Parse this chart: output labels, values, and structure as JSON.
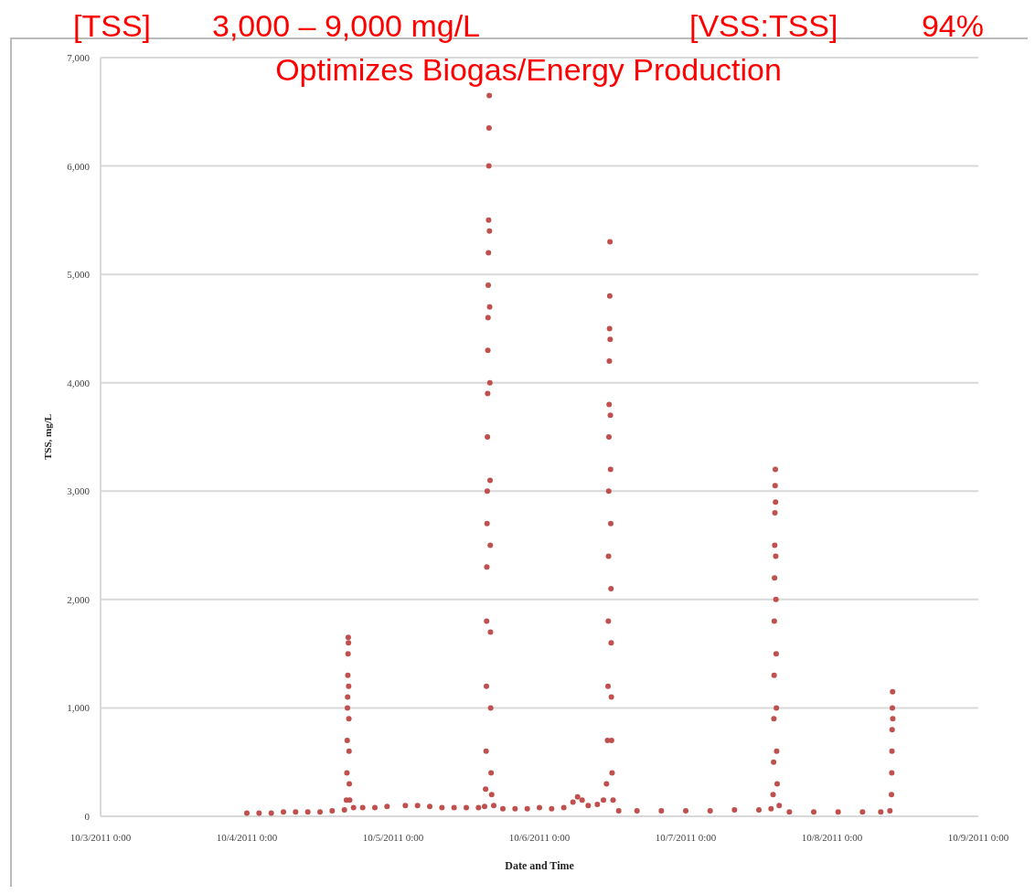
{
  "chart_data": {
    "type": "scatter",
    "xlabel": "Date and Time",
    "ylabel": "TSS, mg/L",
    "annotations": [
      "[TSS]",
      "3,000 – 9,000 mg/L",
      "[VSS:TSS]",
      "94%",
      "Optimizes Biogas/Energy Production"
    ],
    "xlim": [
      "2011-10-03T00:00",
      "2011-10-09T00:00"
    ],
    "xticks": [
      {
        "value": "2011-10-03T00:00",
        "label": "10/3/2011 0:00"
      },
      {
        "value": "2011-10-04T00:00",
        "label": "10/4/2011 0:00"
      },
      {
        "value": "2011-10-05T00:00",
        "label": "10/5/2011 0:00"
      },
      {
        "value": "2011-10-06T00:00",
        "label": "10/6/2011 0:00"
      },
      {
        "value": "2011-10-07T00:00",
        "label": "10/7/2011 0:00"
      },
      {
        "value": "2011-10-08T00:00",
        "label": "10/8/2011 0:00"
      },
      {
        "value": "2011-10-09T00:00",
        "label": "10/9/2011 0:00"
      }
    ],
    "ylim": [
      0,
      7000
    ],
    "yticks": [
      0,
      {
        "value": 1000,
        "label": "1,000"
      },
      {
        "value": 2000,
        "label": "2,000"
      },
      {
        "value": 3000,
        "label": "3,000"
      },
      {
        "value": 4000,
        "label": "4,000"
      },
      {
        "value": 5000,
        "label": "5,000"
      },
      {
        "value": 6000,
        "label": "6,000"
      },
      {
        "value": 7000,
        "label": "7,000"
      }
    ],
    "grid": "y",
    "marker": "circle",
    "series": [
      {
        "color": "#c0504d",
        "x": [
          "2011-10-04T00:00",
          "2011-10-04T02:00",
          "2011-10-04T04:00",
          "2011-10-04T06:00",
          "2011-10-04T08:00",
          "2011-10-04T10:00",
          "2011-10-04T12:00",
          "2011-10-04T14:00",
          "2011-10-04T16:00",
          "2011-10-04T16:20",
          "2011-10-04T16:25",
          "2011-10-04T16:28",
          "2011-10-04T16:30",
          "2011-10-04T16:32",
          "2011-10-04T16:34",
          "2011-10-04T16:36",
          "2011-10-04T16:38",
          "2011-10-04T16:40",
          "2011-10-04T16:42",
          "2011-10-04T16:44",
          "2011-10-04T16:46",
          "2011-10-04T16:48",
          "2011-10-04T16:52",
          "2011-10-04T17:30",
          "2011-10-04T19:00",
          "2011-10-04T21:00",
          "2011-10-04T23:00",
          "2011-10-05T02:00",
          "2011-10-05T04:00",
          "2011-10-05T06:00",
          "2011-10-05T08:00",
          "2011-10-05T10:00",
          "2011-10-05T12:00",
          "2011-10-05T14:00",
          "2011-10-05T15:00",
          "2011-10-05T15:10",
          "2011-10-05T15:15",
          "2011-10-05T15:18",
          "2011-10-05T15:20",
          "2011-10-05T15:22",
          "2011-10-05T15:24",
          "2011-10-05T15:26",
          "2011-10-05T15:28",
          "2011-10-05T15:30",
          "2011-10-05T15:32",
          "2011-10-05T15:34",
          "2011-10-05T15:36",
          "2011-10-05T15:38",
          "2011-10-05T15:40",
          "2011-10-05T15:42",
          "2011-10-05T15:44",
          "2011-10-05T15:46",
          "2011-10-05T15:48",
          "2011-10-05T15:50",
          "2011-10-05T15:52",
          "2011-10-05T15:54",
          "2011-10-05T15:56",
          "2011-10-05T15:58",
          "2011-10-05T16:00",
          "2011-10-05T16:04",
          "2011-10-05T16:10",
          "2011-10-05T16:30",
          "2011-10-05T18:00",
          "2011-10-05T20:00",
          "2011-10-05T22:00",
          "2011-10-06T00:00",
          "2011-10-06T02:00",
          "2011-10-06T04:00",
          "2011-10-06T05:30",
          "2011-10-06T06:15",
          "2011-10-06T07:00",
          "2011-10-06T08:00",
          "2011-10-06T09:30",
          "2011-10-06T10:30",
          "2011-10-06T11:00",
          "2011-10-06T11:10",
          "2011-10-06T11:15",
          "2011-10-06T11:18",
          "2011-10-06T11:20",
          "2011-10-06T11:22",
          "2011-10-06T11:24",
          "2011-10-06T11:26",
          "2011-10-06T11:28",
          "2011-10-06T11:30",
          "2011-10-06T11:32",
          "2011-10-06T11:34",
          "2011-10-06T11:36",
          "2011-10-06T11:38",
          "2011-10-06T11:40",
          "2011-10-06T11:42",
          "2011-10-06T11:44",
          "2011-10-06T11:46",
          "2011-10-06T11:48",
          "2011-10-06T11:50",
          "2011-10-06T11:55",
          "2011-10-06T12:05",
          "2011-10-06T13:00",
          "2011-10-06T16:00",
          "2011-10-06T20:00",
          "2011-10-07T00:00",
          "2011-10-07T04:00",
          "2011-10-07T08:00",
          "2011-10-07T12:00",
          "2011-10-07T14:00",
          "2011-10-07T14:20",
          "2011-10-07T14:25",
          "2011-10-07T14:28",
          "2011-10-07T14:30",
          "2011-10-07T14:32",
          "2011-10-07T14:34",
          "2011-10-07T14:36",
          "2011-10-07T14:38",
          "2011-10-07T14:40",
          "2011-10-07T14:42",
          "2011-10-07T14:44",
          "2011-10-07T14:46",
          "2011-10-07T14:48",
          "2011-10-07T14:50",
          "2011-10-07T14:52",
          "2011-10-07T14:55",
          "2011-10-07T15:00",
          "2011-10-07T15:20",
          "2011-10-07T17:00",
          "2011-10-07T21:00",
          "2011-10-08T01:00",
          "2011-10-08T05:00",
          "2011-10-08T08:00",
          "2011-10-08T09:30",
          "2011-10-08T09:45",
          "2011-10-08T09:48",
          "2011-10-08T09:50",
          "2011-10-08T09:52",
          "2011-10-08T09:54",
          "2011-10-08T09:56",
          "2011-10-08T09:58"
        ],
        "values": [
          30,
          30,
          30,
          40,
          40,
          40,
          40,
          50,
          60,
          150,
          400,
          700,
          1000,
          1100,
          1300,
          1500,
          1650,
          1600,
          1200,
          900,
          600,
          300,
          150,
          80,
          80,
          80,
          90,
          100,
          100,
          90,
          80,
          80,
          80,
          80,
          90,
          250,
          600,
          1200,
          1800,
          2300,
          2700,
          3000,
          3500,
          3900,
          4300,
          4600,
          4900,
          5200,
          5500,
          6000,
          6350,
          6650,
          5400,
          4700,
          4000,
          3100,
          2500,
          1700,
          1000,
          400,
          200,
          100,
          70,
          70,
          70,
          80,
          70,
          80,
          130,
          180,
          150,
          100,
          110,
          150,
          300,
          700,
          1200,
          1800,
          2400,
          3000,
          3500,
          3800,
          4200,
          4500,
          4800,
          5300,
          4400,
          3700,
          3200,
          2700,
          2100,
          1600,
          1100,
          700,
          400,
          150,
          50,
          50,
          50,
          50,
          50,
          60,
          60,
          70,
          200,
          500,
          900,
          1300,
          1800,
          2200,
          2500,
          2800,
          3050,
          3200,
          2900,
          2400,
          2000,
          1500,
          1000,
          600,
          300,
          100,
          40,
          40,
          40,
          40,
          40,
          50,
          200,
          400,
          600,
          800,
          1000,
          1150,
          900
        ]
      }
    ]
  }
}
